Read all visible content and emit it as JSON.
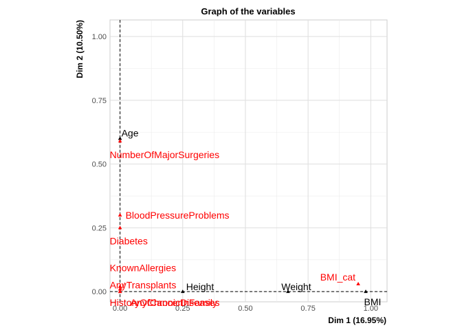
{
  "chart_data": {
    "type": "scatter",
    "title": "Graph of the variables",
    "xlabel": "Dim 1 (16.95%)",
    "ylabel": "Dim 2 (10.50%)",
    "xlim": [
      -0.04,
      1.065
    ],
    "ylim": [
      -0.04,
      1.065
    ],
    "x_ticks": [
      "0.00",
      "0.25",
      "0.50",
      "0.75",
      "1.00"
    ],
    "y_ticks": [
      "0.00",
      "0.25",
      "0.50",
      "0.75",
      "1.00"
    ],
    "x_tick_values": [
      0,
      0.25,
      0.5,
      0.75,
      1
    ],
    "y_tick_values": [
      0,
      0.25,
      0.5,
      0.75,
      1
    ],
    "reference_lines": {
      "x": 0,
      "y": 0
    },
    "grid": true,
    "colors": {
      "active": "#000000",
      "supplementary": "#ff0000"
    },
    "points": [
      {
        "label": "Age",
        "x": 0.0,
        "y": 0.6,
        "group": "active",
        "anchor": "start",
        "dx": 2,
        "dy": -8
      },
      {
        "label": "NumberOfMajorSurgeries",
        "x": 0.0,
        "y": 0.59,
        "group": "supplementary",
        "anchor": "start",
        "dx": -15,
        "dy": 20
      },
      {
        "label": "BloodPressureProblems",
        "x": 0.0,
        "y": 0.3,
        "group": "supplementary",
        "anchor": "start",
        "dx": 8,
        "dy": 0
      },
      {
        "label": "Diabetes",
        "x": 0.0,
        "y": 0.25,
        "group": "supplementary",
        "anchor": "start",
        "dx": -15,
        "dy": 19
      },
      {
        "label": "KnownAllergies",
        "x": 0.0,
        "y": 0.02,
        "group": "supplementary",
        "anchor": "start",
        "dx": -15,
        "dy": -27
      },
      {
        "label": "AnyTransplants",
        "x": 0.0,
        "y": 0.01,
        "group": "supplementary",
        "anchor": "start",
        "dx": -15,
        "dy": -6
      },
      {
        "label": "HistoryOfCancerInFamily",
        "x": 0.0,
        "y": 0.0,
        "group": "supplementary",
        "anchor": "start",
        "dx": -15,
        "dy": 16
      },
      {
        "label": "AnyChronicDiseases",
        "x": 0.0,
        "y": 0.0,
        "group": "supplementary",
        "anchor": "start",
        "dx": 15,
        "dy": 16
      },
      {
        "label": "Height",
        "x": 0.25,
        "y": 0.0,
        "group": "active",
        "anchor": "start",
        "dx": 5,
        "dy": -7
      },
      {
        "label": "Weight",
        "x": 0.67,
        "y": 0.0,
        "group": "active",
        "anchor": "middle",
        "dx": 12,
        "dy": -7
      },
      {
        "label": "BMI_cat",
        "x": 0.95,
        "y": 0.03,
        "group": "supplementary",
        "anchor": "end",
        "dx": -4,
        "dy": -10
      },
      {
        "label": "BMI",
        "x": 0.98,
        "y": 0.0,
        "group": "active",
        "anchor": "middle",
        "dx": 10,
        "dy": 15
      }
    ],
    "arrows": [
      {
        "from": [
          0.02,
          0.035
        ],
        "to": [
          0.005,
          0.01
        ],
        "group": "supplementary"
      }
    ]
  }
}
